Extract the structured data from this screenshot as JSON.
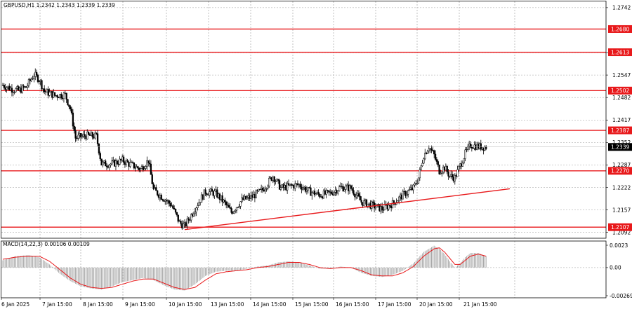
{
  "symbol_header": "GBPUSD,H1  1.2342 1.2343 1.2339 1.2339",
  "macd_header": "MACD(14,22,3) 0.00106 0.00109",
  "current_price_label": "1.2339",
  "chart_data": [
    {
      "type": "candlestick",
      "symbol": "GBPUSD",
      "timeframe": "H1",
      "ohlc_last": {
        "open": 1.2342,
        "high": 1.2343,
        "low": 1.2339,
        "close": 1.2339
      },
      "ylim": [
        1.2075,
        1.276
      ],
      "x_tick_labels": [
        "6 Jan 2025",
        "7 Jan 15:00",
        "8 Jan 15:00",
        "9 Jan 15:00",
        "10 Jan 15:00",
        "13 Jan 15:00",
        "14 Jan 15:00",
        "15 Jan 15:00",
        "16 Jan 15:00",
        "17 Jan 15:00",
        "20 Jan 15:00",
        "21 Jan 15:00"
      ],
      "y_tick_labels": [
        "1.2742",
        "1.2612",
        "1.2547",
        "1.2482",
        "1.2417",
        "1.2352",
        "1.2287",
        "1.2222",
        "1.2157",
        "1.2092"
      ],
      "horizontal_levels": [
        {
          "value": 1.268,
          "label": "1.2680"
        },
        {
          "value": 1.2613,
          "label": "1.2613"
        },
        {
          "value": 1.2502,
          "label": "1.2502"
        },
        {
          "value": 1.2387,
          "label": "1.2387"
        },
        {
          "value": 1.227,
          "label": "1.2270"
        },
        {
          "value": 1.2107,
          "label": "1.2107"
        }
      ],
      "current_price": 1.2339,
      "trendline": {
        "from": {
          "bar": 70,
          "price": 1.21
        },
        "to": {
          "bar": 174,
          "price": 1.2198
        }
      },
      "close_path": [
        [
          0,
          1.2518
        ],
        [
          3,
          1.2508
        ],
        [
          6,
          1.2502
        ],
        [
          9,
          1.2512
        ],
        [
          12,
          1.2548
        ],
        [
          14,
          1.2535
        ],
        [
          16,
          1.25
        ],
        [
          20,
          1.2488
        ],
        [
          24,
          1.249
        ],
        [
          26,
          1.245
        ],
        [
          28,
          1.2365
        ],
        [
          32,
          1.2372
        ],
        [
          36,
          1.237
        ],
        [
          38,
          1.229
        ],
        [
          42,
          1.229
        ],
        [
          46,
          1.23
        ],
        [
          50,
          1.2285
        ],
        [
          53,
          1.2275
        ],
        [
          56,
          1.23
        ],
        [
          58,
          1.2215
        ],
        [
          62,
          1.219
        ],
        [
          65,
          1.217
        ],
        [
          68,
          1.212
        ],
        [
          70,
          1.211
        ],
        [
          72,
          1.2135
        ],
        [
          75,
          1.2175
        ],
        [
          78,
          1.221
        ],
        [
          82,
          1.2205
        ],
        [
          85,
          1.218
        ],
        [
          88,
          1.215
        ],
        [
          92,
          1.2185
        ],
        [
          96,
          1.2195
        ],
        [
          100,
          1.2215
        ],
        [
          104,
          1.2255
        ],
        [
          107,
          1.222
        ],
        [
          110,
          1.2225
        ],
        [
          114,
          1.223
        ],
        [
          118,
          1.221
        ],
        [
          122,
          1.22
        ],
        [
          126,
          1.2205
        ],
        [
          130,
          1.2222
        ],
        [
          134,
          1.222
        ],
        [
          138,
          1.218
        ],
        [
          142,
          1.217
        ],
        [
          146,
          1.216
        ],
        [
          150,
          1.2175
        ],
        [
          154,
          1.22
        ],
        [
          158,
          1.222
        ],
        [
          160,
          1.225
        ],
        [
          162,
          1.2315
        ],
        [
          164,
          1.234
        ],
        [
          166,
          1.2315
        ],
        [
          168,
          1.227
        ],
        [
          170,
          1.228
        ],
        [
          172,
          1.2255
        ],
        [
          174,
          1.225
        ],
        [
          176,
          1.2285
        ],
        [
          178,
          1.232
        ],
        [
          180,
          1.2345
        ],
        [
          183,
          1.234
        ],
        [
          186,
          1.2339
        ]
      ]
    },
    {
      "type": "histogram",
      "indicator": "MACD",
      "params": [
        14,
        22,
        3
      ],
      "values_last": {
        "main": 0.00106,
        "signal": 0.00109
      },
      "ylim": [
        -0.0029,
        0.00255
      ],
      "y_tick_labels": [
        "0.0023",
        "0.00",
        "-0.00269"
      ],
      "series": [
        {
          "name": "MACD",
          "style": "histogram",
          "points": [
            [
              0,
              0.0007
            ],
            [
              5,
              0.0011
            ],
            [
              10,
              0.0012
            ],
            [
              14,
              0.001
            ],
            [
              18,
              0.0003
            ],
            [
              22,
              -0.0006
            ],
            [
              26,
              -0.0013
            ],
            [
              30,
              -0.0018
            ],
            [
              34,
              -0.002
            ],
            [
              38,
              -0.0021
            ],
            [
              42,
              -0.0018
            ],
            [
              46,
              -0.0014
            ],
            [
              50,
              -0.0012
            ],
            [
              54,
              -0.001
            ],
            [
              58,
              -0.0012
            ],
            [
              62,
              -0.0017
            ],
            [
              66,
              -0.0021
            ],
            [
              70,
              -0.0022
            ],
            [
              74,
              -0.0016
            ],
            [
              78,
              -0.0008
            ],
            [
              82,
              -0.0004
            ],
            [
              86,
              -0.0003
            ],
            [
              90,
              -0.0003
            ],
            [
              94,
              -0.0001
            ],
            [
              98,
              0.0001
            ],
            [
              102,
              0.0002
            ],
            [
              106,
              0.0005
            ],
            [
              110,
              0.0006
            ],
            [
              114,
              0.0005
            ],
            [
              118,
              0.0002
            ],
            [
              122,
              -0.0001
            ],
            [
              126,
              -0.0001
            ],
            [
              130,
              0.0001
            ],
            [
              134,
              0.0
            ],
            [
              138,
              -0.0005
            ],
            [
              142,
              -0.0008
            ],
            [
              146,
              -0.0009
            ],
            [
              150,
              -0.0007
            ],
            [
              154,
              -0.0003
            ],
            [
              158,
              0.0004
            ],
            [
              162,
              0.0015
            ],
            [
              166,
              0.0021
            ],
            [
              168,
              0.0018
            ],
            [
              170,
              0.0013
            ],
            [
              172,
              0.0006
            ],
            [
              174,
              0.0
            ],
            [
              176,
              0.0004
            ],
            [
              178,
              0.001
            ],
            [
              180,
              0.0014
            ],
            [
              183,
              0.0014
            ],
            [
              186,
              0.0011
            ]
          ]
        },
        {
          "name": "Signal",
          "style": "line",
          "points": [
            [
              0,
              0.0008
            ],
            [
              5,
              0.001
            ],
            [
              10,
              0.0011
            ],
            [
              14,
              0.0011
            ],
            [
              18,
              0.0006
            ],
            [
              22,
              -0.0002
            ],
            [
              26,
              -0.001
            ],
            [
              30,
              -0.0016
            ],
            [
              34,
              -0.0019
            ],
            [
              38,
              -0.002
            ],
            [
              42,
              -0.0019
            ],
            [
              46,
              -0.0016
            ],
            [
              50,
              -0.0013
            ],
            [
              54,
              -0.0011
            ],
            [
              58,
              -0.0011
            ],
            [
              62,
              -0.0015
            ],
            [
              66,
              -0.0019
            ],
            [
              70,
              -0.0021
            ],
            [
              74,
              -0.0019
            ],
            [
              78,
              -0.0012
            ],
            [
              82,
              -0.0006
            ],
            [
              86,
              -0.0004
            ],
            [
              90,
              -0.0003
            ],
            [
              94,
              -0.0002
            ],
            [
              98,
              0.0
            ],
            [
              102,
              0.0001
            ],
            [
              106,
              0.0003
            ],
            [
              110,
              0.0005
            ],
            [
              114,
              0.0005
            ],
            [
              118,
              0.0003
            ],
            [
              122,
              0.0
            ],
            [
              126,
              -0.0001
            ],
            [
              130,
              0.0
            ],
            [
              134,
              0.0
            ],
            [
              138,
              -0.0003
            ],
            [
              142,
              -0.0007
            ],
            [
              146,
              -0.0008
            ],
            [
              150,
              -0.0008
            ],
            [
              154,
              -0.0005
            ],
            [
              158,
              0.0001
            ],
            [
              162,
              0.0011
            ],
            [
              166,
              0.0018
            ],
            [
              168,
              0.0019
            ],
            [
              170,
              0.0015
            ],
            [
              172,
              0.0009
            ],
            [
              174,
              0.0003
            ],
            [
              176,
              0.0003
            ],
            [
              178,
              0.0007
            ],
            [
              180,
              0.0011
            ],
            [
              183,
              0.0013
            ],
            [
              186,
              0.0011
            ]
          ]
        }
      ]
    }
  ],
  "colors": {
    "candle": "#000000",
    "level_line": "#e8191b",
    "trendline": "#e8191b",
    "macd_hist": "#a8a8a8",
    "macd_signal": "#e8191b",
    "grid": "#9a9a9a",
    "label_bg": "#e8191b",
    "label_text": "#ffffff",
    "price_label_bg": "#000000"
  }
}
